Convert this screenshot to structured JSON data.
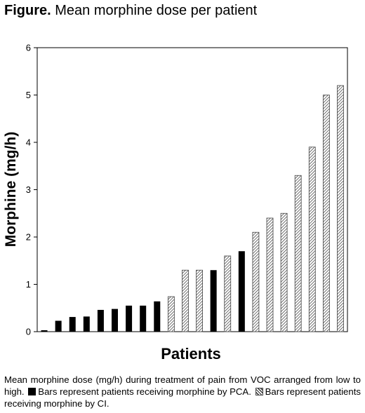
{
  "figure": {
    "label": "Figure.",
    "title": "Mean morphine dose per patient"
  },
  "chart_data": {
    "type": "bar",
    "ylabel": "Morphine (mg/h)",
    "xlabel": "Patients",
    "ylim": [
      0,
      6
    ],
    "yticks": [
      "0",
      "1",
      "2",
      "3",
      "4",
      "5",
      "6"
    ],
    "grid": false,
    "series": [
      {
        "style": "solid",
        "values": [
          0.03,
          0.23,
          0.31,
          0.32,
          0.46,
          0.48,
          0.55,
          0.55,
          0.64,
          null,
          null,
          null,
          1.3,
          null,
          1.7,
          null,
          null,
          null,
          null,
          null,
          null,
          null
        ]
      },
      {
        "style": "hatched",
        "values": [
          null,
          null,
          null,
          null,
          null,
          null,
          null,
          null,
          null,
          0.74,
          1.3,
          1.3,
          null,
          1.6,
          null,
          2.1,
          2.4,
          2.5,
          3.3,
          3.9,
          5.0,
          5.2
        ]
      }
    ]
  },
  "caption": {
    "part1": "Mean morphine dose (mg/h) during treatment of pain from VOC arranged from low to high.",
    "part2": "Bars represent patients receiving morphine by PCA.",
    "part3": "Bars represent patients receiving morphine by CI."
  }
}
